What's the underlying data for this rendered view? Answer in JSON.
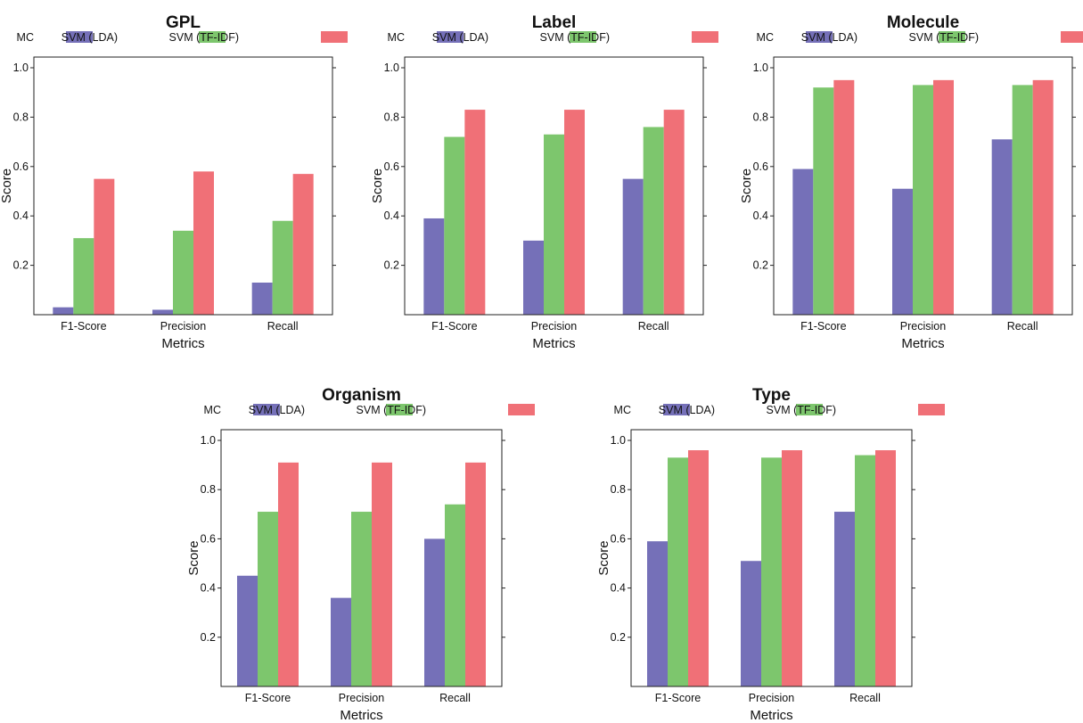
{
  "chart_data": [
    {
      "type": "bar",
      "title": "GPL",
      "xlabel": "Metrics",
      "ylabel": "Score",
      "categories": [
        "F1-Score",
        "Precision",
        "Recall"
      ],
      "ylim": [
        0,
        1.0
      ],
      "yticks": [
        "0.2",
        "0.4",
        "0.6",
        "0.8",
        "1.0"
      ],
      "series": [
        {
          "name": "MC",
          "color": "#7570b8",
          "values": [
            0.03,
            0.02,
            0.13
          ]
        },
        {
          "name": "SVM (LDA)",
          "color": "#7dc66d",
          "values": [
            0.31,
            0.34,
            0.38
          ]
        },
        {
          "name": "SVM (TF-IDF)",
          "color": "#f07077",
          "values": [
            0.55,
            0.58,
            0.57
          ]
        }
      ]
    },
    {
      "type": "bar",
      "title": "Label",
      "xlabel": "Metrics",
      "ylabel": "Score",
      "categories": [
        "F1-Score",
        "Precision",
        "Recall"
      ],
      "ylim": [
        0,
        1.0
      ],
      "yticks": [
        "0.2",
        "0.4",
        "0.6",
        "0.8",
        "1.0"
      ],
      "series": [
        {
          "name": "MC",
          "color": "#7570b8",
          "values": [
            0.39,
            0.3,
            0.55
          ]
        },
        {
          "name": "SVM (LDA)",
          "color": "#7dc66d",
          "values": [
            0.72,
            0.73,
            0.76
          ]
        },
        {
          "name": "SVM (TF-IDF)",
          "color": "#f07077",
          "values": [
            0.83,
            0.83,
            0.83
          ]
        }
      ]
    },
    {
      "type": "bar",
      "title": "Molecule",
      "xlabel": "Metrics",
      "ylabel": "Score",
      "categories": [
        "F1-Score",
        "Precision",
        "Recall"
      ],
      "ylim": [
        0,
        1.0
      ],
      "yticks": [
        "0.2",
        "0.4",
        "0.6",
        "0.8",
        "1.0"
      ],
      "series": [
        {
          "name": "MC",
          "color": "#7570b8",
          "values": [
            0.59,
            0.51,
            0.71
          ]
        },
        {
          "name": "SVM (LDA)",
          "color": "#7dc66d",
          "values": [
            0.92,
            0.93,
            0.93
          ]
        },
        {
          "name": "SVM (TF-IDF)",
          "color": "#f07077",
          "values": [
            0.95,
            0.95,
            0.95
          ]
        }
      ]
    },
    {
      "type": "bar",
      "title": "Organism",
      "xlabel": "Metrics",
      "ylabel": "Score",
      "categories": [
        "F1-Score",
        "Precision",
        "Recall"
      ],
      "ylim": [
        0,
        1.0
      ],
      "yticks": [
        "0.2",
        "0.4",
        "0.6",
        "0.8",
        "1.0"
      ],
      "series": [
        {
          "name": "MC",
          "color": "#7570b8",
          "values": [
            0.45,
            0.36,
            0.6
          ]
        },
        {
          "name": "SVM (LDA)",
          "color": "#7dc66d",
          "values": [
            0.71,
            0.71,
            0.74
          ]
        },
        {
          "name": "SVM (TF-IDF)",
          "color": "#f07077",
          "values": [
            0.91,
            0.91,
            0.91
          ]
        }
      ]
    },
    {
      "type": "bar",
      "title": "Type",
      "xlabel": "Metrics",
      "ylabel": "Score",
      "categories": [
        "F1-Score",
        "Precision",
        "Recall"
      ],
      "ylim": [
        0,
        1.0
      ],
      "yticks": [
        "0.2",
        "0.4",
        "0.6",
        "0.8",
        "1.0"
      ],
      "series": [
        {
          "name": "MC",
          "color": "#7570b8",
          "values": [
            0.59,
            0.51,
            0.71
          ]
        },
        {
          "name": "SVM (LDA)",
          "color": "#7dc66d",
          "values": [
            0.93,
            0.93,
            0.94
          ]
        },
        {
          "name": "SVM (TF-IDF)",
          "color": "#f07077",
          "values": [
            0.96,
            0.96,
            0.96
          ]
        }
      ]
    }
  ]
}
